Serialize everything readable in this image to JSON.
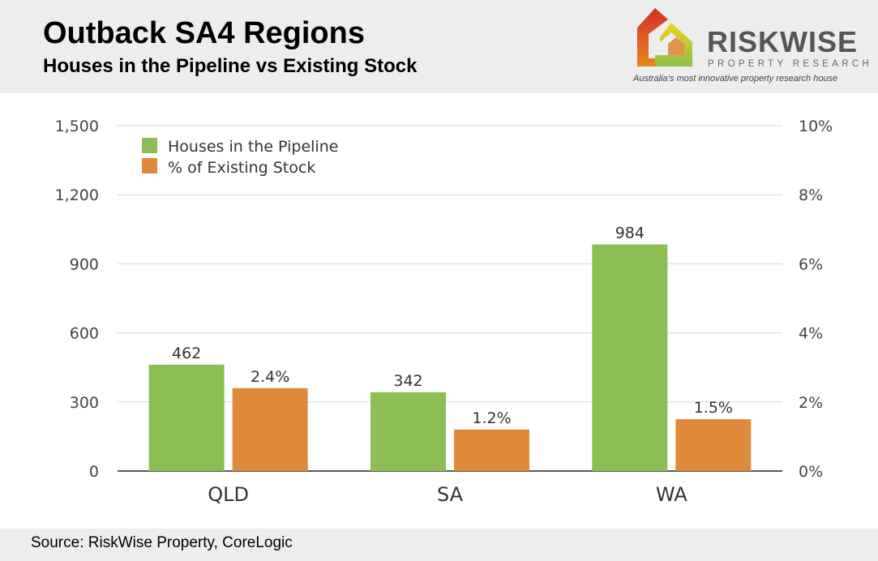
{
  "header": {
    "title": "Outback SA4 Regions",
    "subtitle": "Houses in the Pipeline vs Existing Stock"
  },
  "logo": {
    "brand": "RISKWISE",
    "sub": "PROPERTY RESEARCH",
    "tagline": "Australia's most innovative property research house",
    "colors": [
      "#d42e27",
      "#f0c419",
      "#e07b22",
      "#8cc04b"
    ]
  },
  "footer": {
    "source": "Source: RiskWise Property, CoreLogic"
  },
  "chart_data": {
    "type": "bar",
    "categories": [
      "QLD",
      "SA",
      "WA"
    ],
    "series": [
      {
        "name": "Houses in the Pipeline",
        "axis": "left",
        "values": [
          462,
          342,
          984
        ],
        "labels": [
          "462",
          "342",
          "984"
        ],
        "color": "#8bbf56"
      },
      {
        "name": "% of Existing Stock",
        "axis": "right",
        "values": [
          2.4,
          1.2,
          1.5
        ],
        "labels": [
          "2.4%",
          "1.2%",
          "1.5%"
        ],
        "color": "#df8a3b"
      }
    ],
    "y_left": {
      "lim": [
        0,
        1500
      ],
      "ticks": [
        "0",
        "300",
        "600",
        "900",
        "1,200",
        "1,500"
      ]
    },
    "y_right": {
      "lim": [
        0,
        10
      ],
      "ticks": [
        "0%",
        "2%",
        "4%",
        "6%",
        "8%",
        "10%"
      ]
    },
    "grid": true,
    "legend": "top-left"
  }
}
